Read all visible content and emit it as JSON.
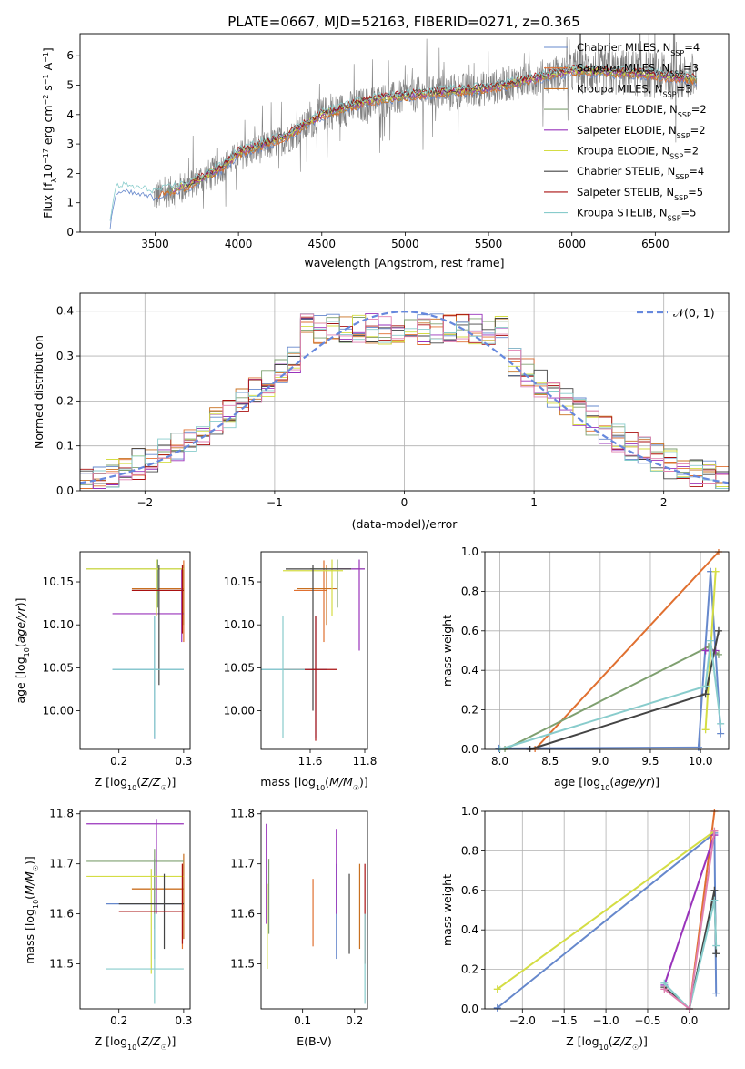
{
  "title": "PLATE=0667, MJD=52163, FIBERID=0271, z=0.365",
  "series": [
    {
      "name": "Chabrier MILES",
      "nssp": "4",
      "color": "#6688cc"
    },
    {
      "name": "Salpeter MILES",
      "nssp": "3",
      "color": "#e07030"
    },
    {
      "name": "Kroupa MILES",
      "nssp": "3",
      "color": "#c87020"
    },
    {
      "name": "Chabrier ELODIE",
      "nssp": "2",
      "color": "#7fa070"
    },
    {
      "name": "Salpeter ELODIE",
      "nssp": "2",
      "color": "#9933bb"
    },
    {
      "name": "Kroupa ELODIE",
      "nssp": "2",
      "color": "#d4dd44"
    },
    {
      "name": "Chabrier STELIB",
      "nssp": "4",
      "color": "#444444"
    },
    {
      "name": "Salpeter STELIB",
      "nssp": "5",
      "color": "#aa1111"
    },
    {
      "name": "Kroupa STELIB",
      "nssp": "5",
      "color": "#88cccc"
    }
  ],
  "chart_data": [
    {
      "id": "spectrum",
      "type": "line",
      "xlabel": "wavelength [Angstrom, rest frame]",
      "ylabel": "Flux [f_λ10^{-17} erg cm^{-2} s^{-1} A^{-1}]",
      "xlim": [
        3050,
        6940
      ],
      "ylim": [
        0,
        6.75
      ],
      "xticks": [
        "3500",
        "4000",
        "4500",
        "5000",
        "5500",
        "6000",
        "6500"
      ],
      "yticks": [
        "0",
        "1",
        "2",
        "3",
        "4",
        "5",
        "6"
      ],
      "legend_placement": "right",
      "data": {
        "color": "#808080",
        "x_range": [
          3490,
          6750
        ],
        "trend": [
          [
            3490,
            1.2
          ],
          [
            3700,
            1.6
          ],
          [
            3900,
            2.2
          ],
          [
            4000,
            2.6
          ],
          [
            4300,
            3.2
          ],
          [
            4500,
            4.0
          ],
          [
            4800,
            4.4
          ],
          [
            5100,
            4.7
          ],
          [
            5500,
            4.9
          ],
          [
            6000,
            5.5
          ],
          [
            6400,
            5.4
          ],
          [
            6750,
            5.2
          ]
        ]
      },
      "model": {
        "trend": [
          [
            3230,
            0.2
          ],
          [
            3260,
            1.4
          ],
          [
            3300,
            1.5
          ],
          [
            3500,
            1.3
          ],
          [
            3700,
            1.6
          ],
          [
            3900,
            2.2
          ],
          [
            4000,
            2.7
          ],
          [
            4300,
            3.3
          ],
          [
            4500,
            4.0
          ],
          [
            4800,
            4.5
          ],
          [
            5100,
            4.7
          ],
          [
            5500,
            4.9
          ],
          [
            6000,
            5.5
          ],
          [
            6400,
            5.4
          ],
          [
            6750,
            5.2
          ]
        ]
      }
    },
    {
      "id": "residuals",
      "type": "line",
      "xlabel": "(data-model)/error",
      "ylabel": "Normed distribution",
      "xlim": [
        -2.5,
        2.5
      ],
      "ylim": [
        0,
        0.44
      ],
      "xticks": [
        "−2",
        "−1",
        "0",
        "1",
        "2"
      ],
      "yticks": [
        "0.0",
        "0.1",
        "0.2",
        "0.3",
        "0.4"
      ],
      "grid": true,
      "legend_placement": "top-right",
      "reference_curve": {
        "label": "𝒩(0, 1)",
        "mean": 0,
        "sigma": 1,
        "style": "dashed",
        "color": "#6688dd"
      },
      "bin_width": 0.1
    },
    {
      "id": "age-vs-Z",
      "type": "scatter",
      "xlabel": "Z [log10(Z/Z☉)]",
      "ylabel": "age  [log10(age/yr)]",
      "xlim": [
        0.14,
        0.31
      ],
      "ylim": [
        9.955,
        10.185
      ],
      "xticks": [
        "0.2",
        "0.3"
      ],
      "yticks": [
        "10.00",
        "10.05",
        "10.10",
        "10.15"
      ],
      "points": [
        {
          "x": 0.255,
          "y": 10.048,
          "xlo": 0.19,
          "xhi": 0.3,
          "ylo": 9.967,
          "yhi": 10.11,
          "s": 0
        },
        {
          "x": 0.3,
          "y": 10.14,
          "xlo": 0.22,
          "xhi": 0.3,
          "ylo": 10.08,
          "yhi": 10.175,
          "s": 1
        },
        {
          "x": 0.3,
          "y": 10.142,
          "xlo": 0.22,
          "xhi": 0.3,
          "ylo": 10.1,
          "yhi": 10.17,
          "s": 2
        },
        {
          "x": 0.26,
          "y": 10.165,
          "xlo": 0.15,
          "xhi": 0.3,
          "ylo": 10.12,
          "yhi": 10.176,
          "s": 3
        },
        {
          "x": 0.297,
          "y": 10.113,
          "xlo": 0.19,
          "xhi": 0.3,
          "ylo": 10.08,
          "yhi": 10.165,
          "s": 4
        },
        {
          "x": 0.258,
          "y": 10.165,
          "xlo": 0.15,
          "xhi": 0.3,
          "ylo": 10.11,
          "yhi": 10.176,
          "s": 5
        },
        {
          "x": 0.262,
          "y": 10.14,
          "xlo": 0.22,
          "xhi": 0.3,
          "ylo": 10.03,
          "yhi": 10.17,
          "s": 6
        },
        {
          "x": 0.298,
          "y": 10.14,
          "xlo": 0.22,
          "xhi": 0.3,
          "ylo": 10.09,
          "yhi": 10.17,
          "s": 7
        },
        {
          "x": 0.255,
          "y": 10.048,
          "xlo": 0.19,
          "xhi": 0.3,
          "ylo": 9.968,
          "yhi": 10.11,
          "s": 8
        }
      ]
    },
    {
      "id": "age-vs-mass",
      "type": "scatter",
      "xlabel": "mass [log10(M/M☉)]",
      "ylabel": "",
      "xlim": [
        11.42,
        11.81
      ],
      "ylim": [
        9.955,
        10.185
      ],
      "xticks": [
        "11.6",
        "11.8"
      ],
      "yticks": [
        "10.00",
        "10.05",
        "10.10",
        "10.15"
      ],
      "points": [
        {
          "x": 11.62,
          "y": 10.048,
          "xlo": 11.42,
          "xhi": 11.66,
          "ylo": 9.968,
          "yhi": 10.11,
          "s": 0
        },
        {
          "x": 11.65,
          "y": 10.14,
          "xlo": 11.54,
          "xhi": 11.66,
          "ylo": 10.08,
          "yhi": 10.175,
          "s": 1
        },
        {
          "x": 11.66,
          "y": 10.142,
          "xlo": 11.55,
          "xhi": 11.7,
          "ylo": 10.1,
          "yhi": 10.17,
          "s": 2
        },
        {
          "x": 11.7,
          "y": 10.165,
          "xlo": 11.6,
          "xhi": 11.8,
          "ylo": 10.12,
          "yhi": 10.176,
          "s": 3
        },
        {
          "x": 11.78,
          "y": 10.165,
          "xlo": 11.68,
          "xhi": 11.8,
          "ylo": 10.07,
          "yhi": 10.176,
          "s": 4
        },
        {
          "x": 11.68,
          "y": 10.163,
          "xlo": 11.5,
          "xhi": 11.72,
          "ylo": 10.11,
          "yhi": 10.176,
          "s": 5
        },
        {
          "x": 11.61,
          "y": 10.165,
          "xlo": 11.51,
          "xhi": 11.75,
          "ylo": 10.0,
          "yhi": 10.17,
          "s": 6
        },
        {
          "x": 11.62,
          "y": 10.048,
          "xlo": 11.5,
          "xhi": 11.7,
          "ylo": 9.965,
          "yhi": 10.11,
          "s": 7
        },
        {
          "x": 11.5,
          "y": 10.048,
          "xlo": 11.42,
          "xhi": 11.58,
          "ylo": 9.968,
          "yhi": 10.11,
          "s": 8
        }
      ]
    },
    {
      "id": "weight-vs-age",
      "type": "line",
      "xlabel": "age  [log10(age/yr)]",
      "ylabel": "mass weight",
      "xlim": [
        7.85,
        10.28
      ],
      "ylim": [
        0,
        1
      ],
      "xticks": [
        "8.0",
        "8.5",
        "9.0",
        "9.5",
        "10.0"
      ],
      "yticks": [
        "0.0",
        "0.2",
        "0.4",
        "0.6",
        "0.8",
        "1.0"
      ],
      "grid": true,
      "lines": [
        {
          "s": 0,
          "x": [
            7.99,
            9.98,
            10.1,
            10.2
          ],
          "y": [
            0.005,
            0.01,
            0.9,
            0.08
          ]
        },
        {
          "s": 1,
          "x": [
            8.35,
            10.18
          ],
          "y": [
            0.0,
            1.0
          ]
        },
        {
          "s": 3,
          "x": [
            8.05,
            10.08,
            10.18
          ],
          "y": [
            0.0,
            0.52,
            0.48
          ]
        },
        {
          "s": 4,
          "x": [
            10.05,
            10.15
          ],
          "y": [
            0.5,
            0.5
          ]
        },
        {
          "s": 5,
          "x": [
            10.05,
            10.15
          ],
          "y": [
            0.1,
            0.9
          ]
        },
        {
          "s": 6,
          "x": [
            8.3,
            10.05,
            10.18
          ],
          "y": [
            0.0,
            0.28,
            0.6
          ]
        },
        {
          "s": 8,
          "x": [
            8.0,
            10.05,
            10.1,
            10.2
          ],
          "y": [
            0.0,
            0.32,
            0.55,
            0.13
          ]
        }
      ]
    },
    {
      "id": "mass-vs-Z",
      "type": "scatter",
      "xlabel": "Z [log10(Z/Z☉)]",
      "ylabel": "mass [log10(M/M☉)]",
      "xlim": [
        0.14,
        0.31
      ],
      "ylim": [
        11.41,
        11.805
      ],
      "xticks": [
        "0.2",
        "0.3"
      ],
      "yticks": [
        "11.5",
        "11.6",
        "11.7",
        "11.8"
      ],
      "points": [
        {
          "x": 0.255,
          "y": 11.62,
          "xlo": 0.18,
          "xhi": 0.3,
          "ylo": 11.51,
          "yhi": 11.71,
          "s": 0
        },
        {
          "x": 0.298,
          "y": 11.65,
          "xlo": 0.22,
          "xhi": 0.3,
          "ylo": 11.53,
          "yhi": 11.7,
          "s": 1
        },
        {
          "x": 0.3,
          "y": 11.65,
          "xlo": 0.22,
          "xhi": 0.3,
          "ylo": 11.55,
          "yhi": 11.72,
          "s": 2
        },
        {
          "x": 0.255,
          "y": 11.705,
          "xlo": 0.15,
          "xhi": 0.3,
          "ylo": 11.57,
          "yhi": 11.73,
          "s": 3
        },
        {
          "x": 0.258,
          "y": 11.78,
          "xlo": 0.15,
          "xhi": 0.3,
          "ylo": 11.6,
          "yhi": 11.79,
          "s": 4
        },
        {
          "x": 0.25,
          "y": 11.675,
          "xlo": 0.15,
          "xhi": 0.3,
          "ylo": 11.48,
          "yhi": 11.69,
          "s": 5
        },
        {
          "x": 0.27,
          "y": 11.62,
          "xlo": 0.2,
          "xhi": 0.3,
          "ylo": 11.53,
          "yhi": 11.68,
          "s": 6
        },
        {
          "x": 0.298,
          "y": 11.605,
          "xlo": 0.2,
          "xhi": 0.3,
          "ylo": 11.54,
          "yhi": 11.7,
          "s": 7
        },
        {
          "x": 0.255,
          "y": 11.49,
          "xlo": 0.18,
          "xhi": 0.3,
          "ylo": 11.42,
          "yhi": 11.6,
          "s": 8
        }
      ]
    },
    {
      "id": "mass-vs-EBV",
      "type": "scatter",
      "xlabel": "E(B-V)",
      "ylabel": "",
      "xlim": [
        0.02,
        0.225
      ],
      "ylim": [
        11.41,
        11.805
      ],
      "xticks": [
        "0.1",
        "0.2"
      ],
      "yticks": [
        "11.5",
        "11.6",
        "11.7",
        "11.8"
      ],
      "points": [
        {
          "x": 0.165,
          "y": 11.6,
          "ylo": 11.51,
          "yhi": 11.7,
          "s": 0
        },
        {
          "x": 0.12,
          "y": 11.6,
          "ylo": 11.535,
          "yhi": 11.67,
          "s": 1
        },
        {
          "x": 0.21,
          "y": 11.6,
          "ylo": 11.53,
          "yhi": 11.7,
          "s": 2
        },
        {
          "x": 0.035,
          "y": 11.63,
          "ylo": 11.56,
          "yhi": 11.71,
          "s": 3
        },
        {
          "x": 0.03,
          "y": 11.7,
          "ylo": 11.58,
          "yhi": 11.78,
          "s": 4
        },
        {
          "x": 0.032,
          "y": 11.57,
          "ylo": 11.49,
          "yhi": 11.66,
          "s": 5
        },
        {
          "x": 0.19,
          "y": 11.6,
          "ylo": 11.52,
          "yhi": 11.68,
          "s": 6
        },
        {
          "x": 0.22,
          "y": 11.6,
          "ylo": 11.5,
          "yhi": 11.7,
          "s": 7
        },
        {
          "x": 0.22,
          "y": 11.5,
          "ylo": 11.42,
          "yhi": 11.6,
          "s": 8
        },
        {
          "x": 0.165,
          "y": 11.68,
          "ylo": 11.6,
          "yhi": 11.77,
          "s": 4
        }
      ]
    },
    {
      "id": "weight-vs-Z",
      "type": "line",
      "xlabel": "Z [log10(Z/Z☉)]",
      "ylabel": "mass weight",
      "xlim": [
        -2.45,
        0.47
      ],
      "ylim": [
        0,
        1
      ],
      "xticks": [
        "−2.0",
        "−1.5",
        "−1.0",
        "−0.5",
        "0.0"
      ],
      "yticks": [
        "0.0",
        "0.2",
        "0.4",
        "0.6",
        "0.8",
        "1.0"
      ],
      "grid": true,
      "lines": [
        {
          "s": 0,
          "x": [
            -2.3,
            0.3,
            0.32
          ],
          "y": [
            0.005,
            0.89,
            0.08
          ]
        },
        {
          "s": 1,
          "x": [
            0.0,
            0.3
          ],
          "y": [
            0.0,
            1.0
          ]
        },
        {
          "s": 4,
          "x": [
            -0.3,
            0.3
          ],
          "y": [
            0.12,
            0.88
          ]
        },
        {
          "s": 5,
          "x": [
            -2.3,
            0.3
          ],
          "y": [
            0.1,
            0.9
          ]
        },
        {
          "s": 6,
          "x": [
            -0.3,
            0.0,
            0.3,
            0.32
          ],
          "y": [
            0.11,
            0.0,
            0.6,
            0.28
          ]
        },
        {
          "s": 8,
          "x": [
            -0.3,
            0.0,
            0.3,
            0.32
          ],
          "y": [
            0.13,
            0.0,
            0.55,
            0.32
          ]
        }
      ],
      "extra_pink": {
        "x": [
          -0.3,
          0.0,
          0.3
        ],
        "y": [
          0.1,
          0.0,
          0.9
        ],
        "color": "#e080b0"
      }
    }
  ]
}
